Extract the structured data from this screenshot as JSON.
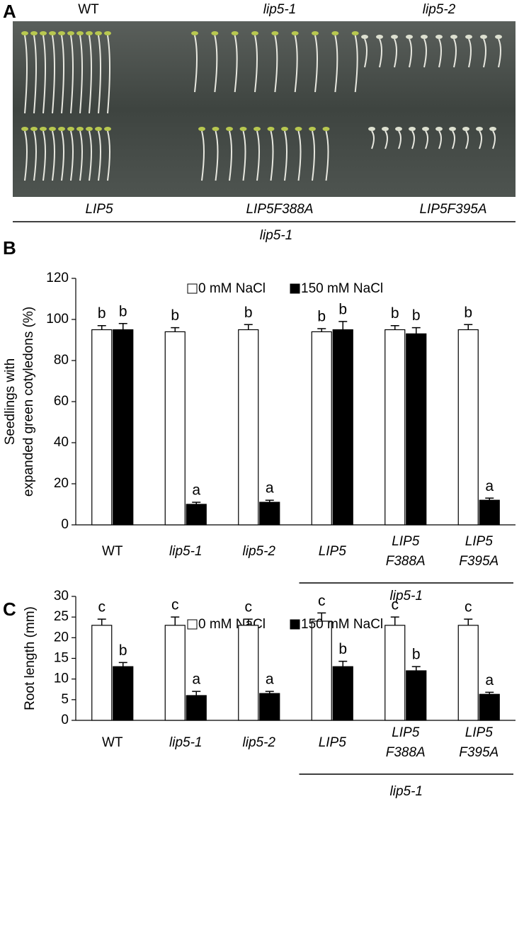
{
  "panel_a": {
    "label": "A",
    "top_labels": [
      "WT",
      "lip5-1",
      "lip5-2"
    ],
    "bottom_labels": [
      "LIP5",
      "LIP5F388A",
      "LIP5F395A"
    ],
    "group_label": "lip5-1"
  },
  "chart_data": [
    {
      "type": "bar",
      "panel_label": "B",
      "y_label": [
        "Seedlings with",
        "expanded green cotyledons (%)"
      ],
      "categories": [
        "WT",
        "lip5-1",
        "lip5-2",
        "LIP5",
        "LIP5 F388A",
        "LIP5 F395A"
      ],
      "series": [
        {
          "name": "0 mM NaCl",
          "color": "#ffffff",
          "values": [
            95,
            94,
            95,
            94,
            95,
            95
          ],
          "errors": [
            2,
            2,
            2.5,
            1.5,
            2,
            2.5
          ],
          "letters": [
            "b",
            "b",
            "b",
            "b",
            "b",
            "b"
          ]
        },
        {
          "name": "150 mM NaCl",
          "color": "#000000",
          "values": [
            95,
            10,
            11,
            95,
            93,
            12
          ],
          "errors": [
            3,
            1,
            1,
            4,
            3,
            1
          ],
          "letters": [
            "b",
            "a",
            "a",
            "b",
            "b",
            "a"
          ]
        }
      ],
      "ylim": [
        0,
        120
      ],
      "yticks": [
        0,
        20,
        40,
        60,
        80,
        100,
        120
      ],
      "group_label": "lip5-1"
    },
    {
      "type": "bar",
      "panel_label": "C",
      "y_label": [
        "Root length (mm)"
      ],
      "categories": [
        "WT",
        "lip5-1",
        "lip5-2",
        "LIP5",
        "LIP5 F388A",
        "LIP5 F395A"
      ],
      "series": [
        {
          "name": "0 mM NaCl",
          "color": "#ffffff",
          "values": [
            23,
            23,
            23,
            24,
            23,
            23
          ],
          "errors": [
            1.5,
            2,
            1.5,
            2,
            2,
            1.5
          ],
          "letters": [
            "c",
            "c",
            "c",
            "c",
            "c",
            "c"
          ]
        },
        {
          "name": "150 mM NaCl",
          "color": "#000000",
          "values": [
            13,
            6,
            6.5,
            13,
            12,
            6.3
          ],
          "errors": [
            1,
            1,
            0.5,
            1.3,
            1,
            0.5
          ],
          "letters": [
            "b",
            "a",
            "a",
            "b",
            "b",
            "a"
          ]
        }
      ],
      "ylim": [
        0,
        30
      ],
      "yticks": [
        0,
        5,
        10,
        15,
        20,
        25,
        30
      ],
      "group_label": "lip5-1"
    }
  ]
}
